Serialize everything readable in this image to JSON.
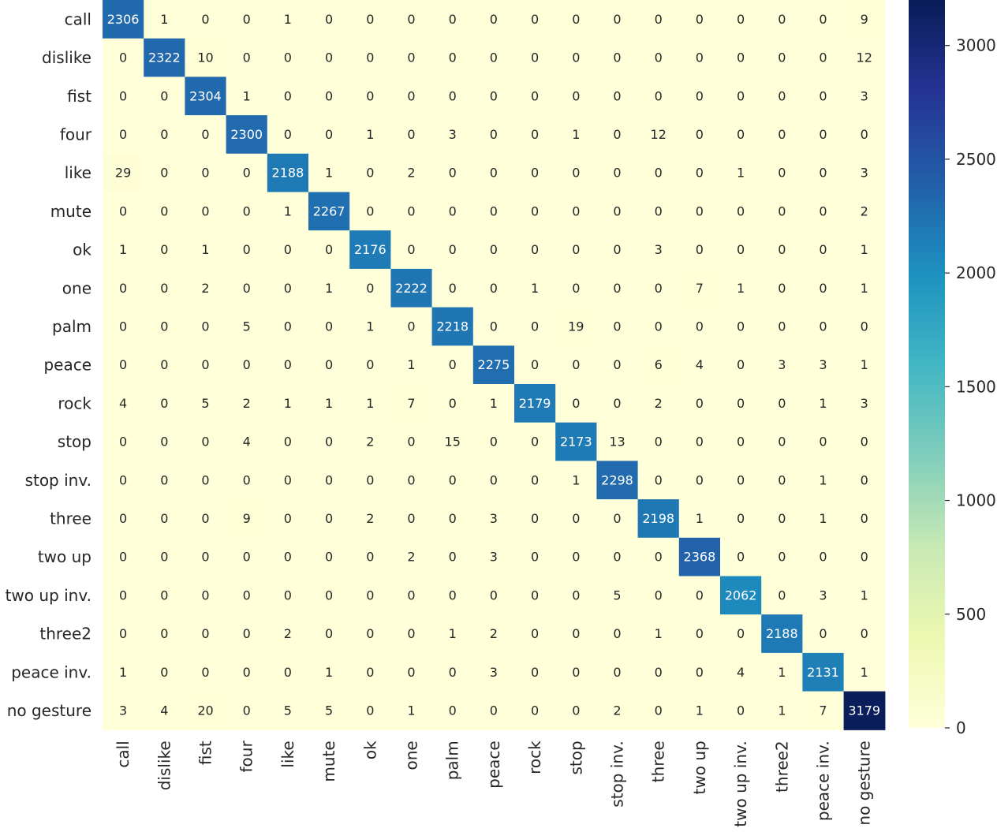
{
  "chart_data": {
    "type": "heatmap",
    "title": "",
    "xlabel": "",
    "ylabel": "",
    "row_labels": [
      "call",
      "dislike",
      "fist",
      "four",
      "like",
      "mute",
      "ok",
      "one",
      "palm",
      "peace",
      "rock",
      "stop",
      "stop inv.",
      "three",
      "two up",
      "two up inv.",
      "three2",
      "peace inv.",
      "no gesture"
    ],
    "col_labels": [
      "call",
      "dislike",
      "fist",
      "four",
      "like",
      "mute",
      "ok",
      "one",
      "palm",
      "peace",
      "rock",
      "stop",
      "stop inv.",
      "three",
      "two up",
      "two up inv.",
      "three2",
      "peace inv.",
      "no gesture"
    ],
    "values": [
      [
        2306,
        1,
        0,
        0,
        1,
        0,
        0,
        0,
        0,
        0,
        0,
        0,
        0,
        0,
        0,
        0,
        0,
        0,
        9
      ],
      [
        0,
        2322,
        10,
        0,
        0,
        0,
        0,
        0,
        0,
        0,
        0,
        0,
        0,
        0,
        0,
        0,
        0,
        0,
        12
      ],
      [
        0,
        0,
        2304,
        1,
        0,
        0,
        0,
        0,
        0,
        0,
        0,
        0,
        0,
        0,
        0,
        0,
        0,
        0,
        3
      ],
      [
        0,
        0,
        0,
        2300,
        0,
        0,
        1,
        0,
        3,
        0,
        0,
        1,
        0,
        12,
        0,
        0,
        0,
        0,
        0
      ],
      [
        29,
        0,
        0,
        0,
        2188,
        1,
        0,
        2,
        0,
        0,
        0,
        0,
        0,
        0,
        0,
        1,
        0,
        0,
        3
      ],
      [
        0,
        0,
        0,
        0,
        1,
        2267,
        0,
        0,
        0,
        0,
        0,
        0,
        0,
        0,
        0,
        0,
        0,
        0,
        2
      ],
      [
        1,
        0,
        1,
        0,
        0,
        0,
        2176,
        0,
        0,
        0,
        0,
        0,
        0,
        3,
        0,
        0,
        0,
        0,
        1
      ],
      [
        0,
        0,
        2,
        0,
        0,
        1,
        0,
        2222,
        0,
        0,
        1,
        0,
        0,
        0,
        7,
        1,
        0,
        0,
        1
      ],
      [
        0,
        0,
        0,
        5,
        0,
        0,
        1,
        0,
        2218,
        0,
        0,
        19,
        0,
        0,
        0,
        0,
        0,
        0,
        0
      ],
      [
        0,
        0,
        0,
        0,
        0,
        0,
        0,
        1,
        0,
        2275,
        0,
        0,
        0,
        6,
        4,
        0,
        3,
        3,
        1
      ],
      [
        4,
        0,
        5,
        2,
        1,
        1,
        1,
        7,
        0,
        1,
        2179,
        0,
        0,
        2,
        0,
        0,
        0,
        1,
        3
      ],
      [
        0,
        0,
        0,
        4,
        0,
        0,
        2,
        0,
        15,
        0,
        0,
        2173,
        13,
        0,
        0,
        0,
        0,
        0,
        0
      ],
      [
        0,
        0,
        0,
        0,
        0,
        0,
        0,
        0,
        0,
        0,
        0,
        1,
        2298,
        0,
        0,
        0,
        0,
        1,
        0
      ],
      [
        0,
        0,
        0,
        9,
        0,
        0,
        2,
        0,
        0,
        3,
        0,
        0,
        0,
        2198,
        1,
        0,
        0,
        1,
        0
      ],
      [
        0,
        0,
        0,
        0,
        0,
        0,
        0,
        2,
        0,
        3,
        0,
        0,
        0,
        0,
        2368,
        0,
        0,
        0,
        0
      ],
      [
        0,
        0,
        0,
        0,
        0,
        0,
        0,
        0,
        0,
        0,
        0,
        0,
        5,
        0,
        0,
        2062,
        0,
        3,
        1
      ],
      [
        0,
        0,
        0,
        0,
        2,
        0,
        0,
        0,
        1,
        2,
        0,
        0,
        0,
        1,
        0,
        0,
        2188,
        0,
        0
      ],
      [
        1,
        0,
        0,
        0,
        0,
        1,
        0,
        0,
        0,
        3,
        0,
        0,
        0,
        0,
        0,
        4,
        1,
        2131,
        1
      ],
      [
        3,
        4,
        20,
        0,
        5,
        5,
        0,
        1,
        0,
        0,
        0,
        0,
        2,
        0,
        1,
        0,
        1,
        7,
        3179
      ]
    ],
    "colorbar": {
      "min": 0,
      "max": 3200,
      "ticks": [
        0,
        500,
        1000,
        1500,
        2000,
        2500,
        3000
      ],
      "colormap": "YlGnBu"
    }
  }
}
